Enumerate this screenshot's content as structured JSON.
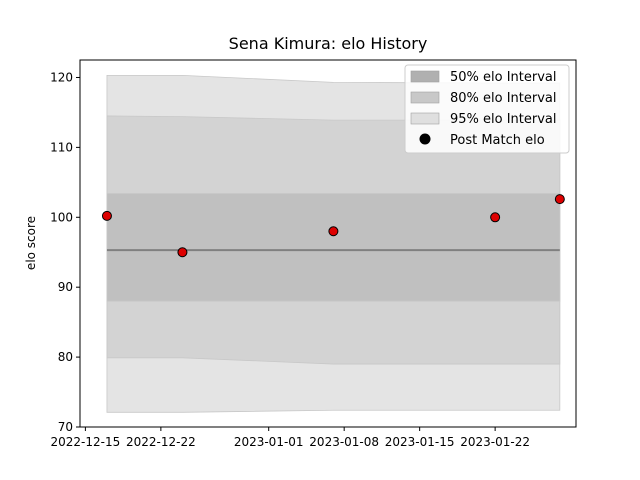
{
  "chart_data": {
    "type": "area",
    "title": "Sena Kimura: elo History",
    "xlabel": "",
    "ylabel": "elo score",
    "xlim": [
      "2022-12-14T12:00",
      "2023-01-29T12:00"
    ],
    "ylim": [
      70,
      122.5
    ],
    "yticks": [
      70,
      80,
      90,
      100,
      110,
      120
    ],
    "xticks": [
      "2022-12-15",
      "2022-12-22",
      "2023-01-01",
      "2023-01-08",
      "2023-01-15",
      "2023-01-22"
    ],
    "band_x": [
      "2022-12-17",
      "2022-12-24",
      "2023-01-07",
      "2023-01-22",
      "2023-01-28"
    ],
    "mean": [
      95.3,
      95.3,
      95.3,
      95.3,
      95.3
    ],
    "bands": [
      {
        "name": "95% elo Interval",
        "color": "#e4e4e4",
        "lower": [
          72.1,
          72.1,
          72.4,
          72.4,
          72.4
        ],
        "upper": [
          120.3,
          120.3,
          119.3,
          119.2,
          119.2
        ]
      },
      {
        "name": "80% elo Interval",
        "color": "#d3d3d3",
        "lower": [
          79.9,
          79.9,
          79.0,
          79.0,
          79.0
        ],
        "upper": [
          114.5,
          114.4,
          113.9,
          113.9,
          113.9
        ]
      },
      {
        "name": "50% elo Interval",
        "color": "#c0c0c0",
        "lower": [
          88.0,
          88.0,
          88.0,
          88.0,
          88.0
        ],
        "upper": [
          103.4,
          103.4,
          103.4,
          103.4,
          103.4
        ]
      }
    ],
    "series": [
      {
        "name": "Post Match elo",
        "color": "#dd0000",
        "points": [
          {
            "x": "2022-12-17",
            "y": 100.2
          },
          {
            "x": "2022-12-24",
            "y": 95.0
          },
          {
            "x": "2023-01-07",
            "y": 98.0
          },
          {
            "x": "2023-01-22",
            "y": 100.0
          },
          {
            "x": "2023-01-28",
            "y": 102.6
          }
        ]
      }
    ],
    "legend": {
      "position": "top-right",
      "entries": [
        {
          "label": "50% elo Interval",
          "color": "#b0b0b0"
        },
        {
          "label": "80% elo Interval",
          "color": "#c8c8c8"
        },
        {
          "label": "95% elo Interval",
          "color": "#dfdfdf"
        },
        {
          "label": "Post Match elo",
          "color": "#000000"
        }
      ]
    }
  }
}
